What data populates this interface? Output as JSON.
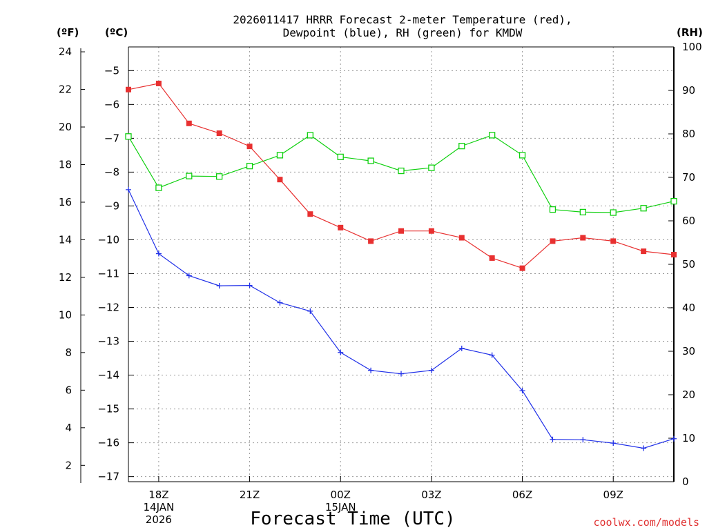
{
  "chart_data": {
    "type": "line",
    "title_line1": "2026011417 HRRR Forecast 2-meter Temperature (red),",
    "title_line2": "Dewpoint (blue), RH (green) for KMDW",
    "xlabel": "Forecast Time (UTC)",
    "credit": "coolwx.com/models",
    "units": {
      "fahrenheit": "(ºF)",
      "celsius": "(ºC)",
      "rh": "(RH)"
    },
    "x_hours": [
      17,
      18,
      19,
      20,
      21,
      22,
      23,
      24,
      25,
      26,
      27,
      28,
      29,
      30,
      31,
      32,
      33,
      34,
      35
    ],
    "x_ticks": [
      {
        "hour": 18,
        "lines": [
          "18Z",
          "14JAN",
          "2026"
        ]
      },
      {
        "hour": 21,
        "lines": [
          "21Z"
        ]
      },
      {
        "hour": 24,
        "lines": [
          "00Z",
          "15JAN"
        ]
      },
      {
        "hour": 27,
        "lines": [
          "03Z"
        ]
      },
      {
        "hour": 30,
        "lines": [
          "06Z"
        ]
      },
      {
        "hour": 33,
        "lines": [
          "09Z"
        ]
      }
    ],
    "celsius_axis": {
      "min": -17.15,
      "max": -4.3,
      "ticks": [
        -17,
        -16,
        -15,
        -14,
        -13,
        -12,
        -11,
        -10,
        -9,
        -8,
        -7,
        -6,
        -5
      ]
    },
    "fahrenheit_axis": {
      "min": 1.13,
      "max": 24.26,
      "ticks": [
        2,
        4,
        6,
        8,
        10,
        12,
        14,
        16,
        18,
        20,
        22,
        24
      ]
    },
    "rh_axis": {
      "min": 0,
      "max": 100,
      "ticks": [
        0,
        10,
        20,
        30,
        40,
        50,
        60,
        70,
        80,
        90,
        100
      ]
    },
    "series": [
      {
        "name": "Temperature",
        "color": "#e83030",
        "marker": "filled-square",
        "axis": "celsius",
        "values": [
          -5.56,
          -5.38,
          -6.56,
          -6.85,
          -7.24,
          -8.22,
          -9.24,
          -9.64,
          -10.04,
          -9.74,
          -9.74,
          -9.94,
          -10.54,
          -10.84,
          -10.04,
          -9.94,
          -10.04,
          -10.34,
          -10.44
        ]
      },
      {
        "name": "Dewpoint",
        "color": "#2030e8",
        "marker": "plus",
        "axis": "celsius",
        "values": [
          -8.52,
          -10.41,
          -11.06,
          -11.36,
          -11.35,
          -11.86,
          -12.11,
          -13.33,
          -13.86,
          -13.96,
          -13.86,
          -13.21,
          -13.41,
          -14.46,
          -15.9,
          -15.91,
          -16.01,
          -16.16,
          -15.88
        ]
      },
      {
        "name": "RH",
        "color": "#10d010",
        "marker": "open-square",
        "axis": "rh",
        "values": [
          79.4,
          67.6,
          70.3,
          70.2,
          72.6,
          75.1,
          79.7,
          74.7,
          73.8,
          71.5,
          72.2,
          77.2,
          79.7,
          75.1,
          62.6,
          62.0,
          61.9,
          62.9,
          64.5
        ]
      }
    ]
  }
}
